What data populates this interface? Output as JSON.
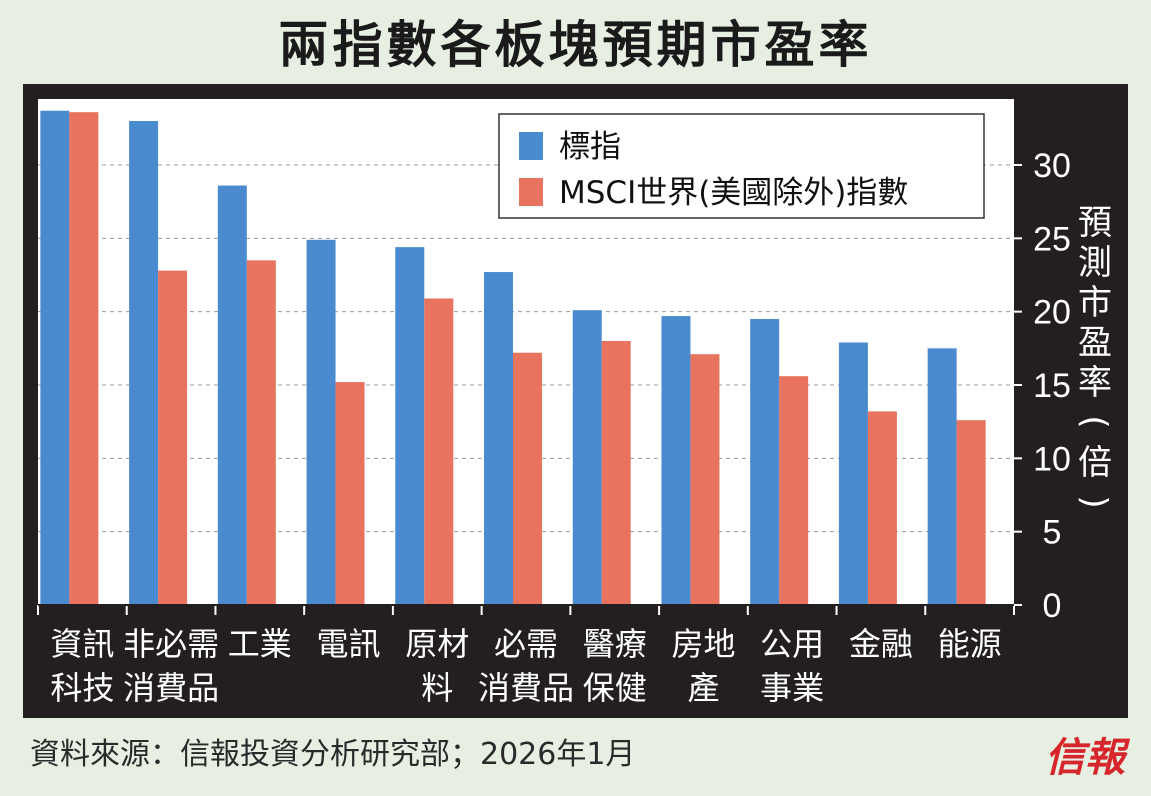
{
  "title": "兩指數各板塊預期市盈率",
  "source": "資料來源：信報投資分析研究部；2026年1月",
  "logo_text": "信報",
  "colors": {
    "background": "#e6efe2",
    "panel": "#231f20",
    "plot": "#ffffff",
    "series_hsi": "#4a8bd0",
    "series_msci": "#e8735f"
  },
  "chart_data": {
    "type": "bar",
    "title": "兩指數各板塊預期市盈率",
    "ylabel": "預測市盈率(倍)",
    "xlabel": "",
    "ylim": [
      0,
      34.5
    ],
    "yticks": [
      0,
      5,
      10,
      15,
      20,
      25,
      30
    ],
    "grid": true,
    "legend_position": "top-right",
    "categories": [
      [
        "資訊",
        "科技"
      ],
      [
        "非必需",
        "消費品"
      ],
      [
        "工業"
      ],
      [
        "電訊"
      ],
      [
        "原材",
        "料"
      ],
      [
        "必需",
        "消費品"
      ],
      [
        "醫療",
        "保健"
      ],
      [
        "房地",
        "產"
      ],
      [
        "公用",
        "事業"
      ],
      [
        "金融"
      ],
      [
        "能源"
      ]
    ],
    "series": [
      {
        "name": "標指",
        "values": [
          33.7,
          33.0,
          28.6,
          24.9,
          24.4,
          22.7,
          20.1,
          19.7,
          19.5,
          17.9,
          17.5
        ]
      },
      {
        "name": "MSCI世界(美國除外)指數",
        "values": [
          33.6,
          22.8,
          23.5,
          15.2,
          20.9,
          17.2,
          18.0,
          17.1,
          15.6,
          13.2,
          12.6
        ]
      }
    ]
  }
}
